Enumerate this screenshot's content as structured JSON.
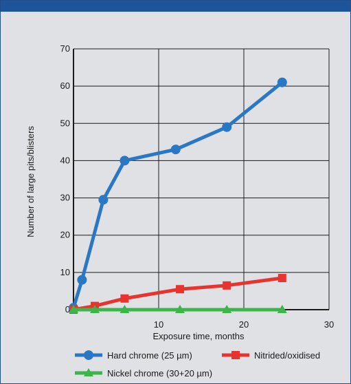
{
  "colors": {
    "header": "#1f5499",
    "background": "#dfe1e5",
    "grid": "#1a1a1a"
  },
  "chart_data": {
    "type": "line",
    "xlabel": "Exposure time, months",
    "ylabel": "Number of large pits/blisters",
    "xlim": [
      0,
      30
    ],
    "ylim": [
      0,
      70
    ],
    "x_ticks": [
      "10",
      "20",
      "30"
    ],
    "y_ticks": [
      "0",
      "10",
      "20",
      "30",
      "40",
      "50",
      "60",
      "70"
    ],
    "grid": true,
    "legend_placement": "bottom",
    "series": [
      {
        "name": "Hard chrome (25 µm)",
        "color": "#2a77c4",
        "marker": "circle",
        "x": [
          0,
          1,
          3.5,
          6,
          12,
          18,
          24.5
        ],
        "y": [
          0.5,
          8,
          29.5,
          40,
          43,
          49,
          61
        ]
      },
      {
        "name": "Nitrided/oxidised",
        "color": "#e8332e",
        "marker": "square",
        "x": [
          0,
          2.5,
          6,
          12.5,
          18,
          24.5
        ],
        "y": [
          0,
          1,
          3,
          5.5,
          6.5,
          8.5
        ]
      },
      {
        "name": "Nickel chrome (30+20 µm)",
        "color": "#3cb54a",
        "marker": "triangle",
        "x": [
          0,
          2.5,
          6,
          12.5,
          18,
          24.5
        ],
        "y": [
          0,
          0,
          0,
          0,
          0,
          0
        ]
      }
    ]
  }
}
